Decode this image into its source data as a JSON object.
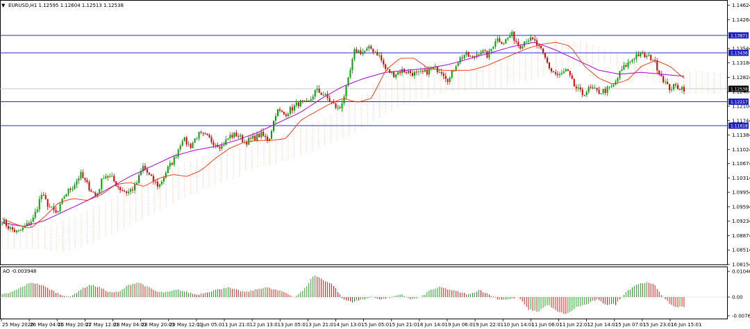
{
  "main_header": {
    "menu_glyph": "▼",
    "text": "EURUSD,H1  1.12595 1.12604 1.12513 1.12538"
  },
  "ao_header": {
    "text": "AO -0.003948"
  },
  "price_axis": {
    "ticks": [
      "1.14624",
      "1.14264",
      "1.13544",
      "1.13184",
      "1.12824",
      "1.12464",
      "1.12104",
      "1.11744",
      "1.11384",
      "1.11024",
      "1.10674",
      "1.10314",
      "1.09954",
      "1.09594",
      "1.09234",
      "1.08874",
      "1.08514",
      "1.08154"
    ]
  },
  "ao_axis": {
    "ticks": [
      "0.010469",
      "0.00",
      "-0.007641"
    ]
  },
  "time_axis": {
    "labels": [
      "25 May 2020",
      "26 May 04:01",
      "26 May 20:01",
      "27 May 12:01",
      "28 May 04:01",
      "28 May 20:01",
      "29 May 12:01",
      "1 Jun 05:01",
      "1 Jun 21:01",
      "2 Jun 13:01",
      "3 Jun 05:01",
      "3 Jun 21:01",
      "4 Jun 13:01",
      "5 Jun 05:01",
      "5 Jun 21:01",
      "8 Jun 14:01",
      "9 Jun 06:01",
      "9 Jun 22:01",
      "10 Jun 14:01",
      "11 Jun 06:01",
      "11 Jun 22:01",
      "12 Jun 14:01",
      "15 Jun 07:01",
      "15 Jun 23:01",
      "16 Jun 15:01"
    ]
  },
  "levels": [
    {
      "label": "1.13871",
      "price": 1.13871
    },
    {
      "label": "1.13436",
      "price": 1.13436
    },
    {
      "label": "1.12217",
      "price": 1.12217
    },
    {
      "label": "1.11618",
      "price": 1.11618
    }
  ],
  "current_price": {
    "label": "1.12538",
    "price": 1.12538
  },
  "chart_data": {
    "type": "candlestick",
    "symbol": "EURUSD",
    "timeframe": "H1",
    "ylim": [
      1.08154,
      1.14624
    ],
    "close_path": [
      1.0925,
      1.0905,
      1.0895,
      1.091,
      1.093,
      1.099,
      1.096,
      1.094,
      1.099,
      1.101,
      1.104,
      1.101,
      1.0985,
      1.104,
      1.103,
      1.1005,
      1.0995,
      1.101,
      1.106,
      1.103,
      1.101,
      1.105,
      1.108,
      1.113,
      1.111,
      1.114,
      1.1135,
      1.112,
      1.111,
      1.1135,
      1.114,
      1.112,
      1.113,
      1.114,
      1.1125,
      1.12,
      1.119,
      1.1205,
      1.122,
      1.1215,
      1.125,
      1.124,
      1.122,
      1.12,
      1.126,
      1.135,
      1.1345,
      1.1355,
      1.134,
      1.13,
      1.129,
      1.13,
      1.1295,
      1.129,
      1.1295,
      1.1305,
      1.13,
      1.1275,
      1.132,
      1.134,
      1.133,
      1.135,
      1.1335,
      1.138,
      1.137,
      1.139,
      1.136,
      1.138,
      1.137,
      1.134,
      1.13,
      1.1285,
      1.13,
      1.126,
      1.124,
      1.1255,
      1.1245,
      1.125,
      1.126,
      1.13,
      1.132,
      1.134,
      1.1335,
      1.133,
      1.129,
      1.1255,
      1.126,
      1.1255
    ],
    "sma_fast_path": [
      1.093,
      1.0915,
      1.0905,
      1.0935,
      1.097,
      1.098,
      1.0975,
      1.099,
      1.1015,
      1.102,
      1.101,
      1.103,
      1.104,
      1.1035,
      1.105,
      1.108,
      1.1105,
      1.112,
      1.1125,
      1.1125,
      1.113,
      1.1175,
      1.1195,
      1.1215,
      1.123,
      1.122,
      1.123,
      1.13,
      1.133,
      1.133,
      1.1305,
      1.13,
      1.13,
      1.13,
      1.131,
      1.1325,
      1.134,
      1.1355,
      1.1365,
      1.137,
      1.136,
      1.131,
      1.128,
      1.1265,
      1.1275,
      1.131,
      1.1325,
      1.131,
      1.128
    ],
    "sma_slow_path": [
      1.092,
      1.091,
      1.0925,
      1.095,
      1.0975,
      1.1005,
      1.1035,
      1.106,
      1.1085,
      1.11,
      1.111,
      1.1125,
      1.1145,
      1.117,
      1.1195,
      1.123,
      1.126,
      1.128,
      1.1295,
      1.13,
      1.1305,
      1.1315,
      1.133,
      1.1345,
      1.136,
      1.137,
      1.135,
      1.1325,
      1.13,
      1.129,
      1.1295,
      1.129,
      1.1285
    ],
    "awesome_oscillator": {
      "ylim": [
        -0.007641,
        0.010469
      ],
      "last": -0.003948
    },
    "colors": {
      "bull": "#00a000",
      "bear": "#e00000",
      "sma_fast": "#ff2a00",
      "sma_slow": "#b000d8",
      "cloud": "#f0a070",
      "level_line": "#2a2adc",
      "level_label_bg": "#1d1dc8",
      "current_label_bg": "#000000",
      "ao_up": "#00a000",
      "ao_down": "#e00000"
    }
  }
}
